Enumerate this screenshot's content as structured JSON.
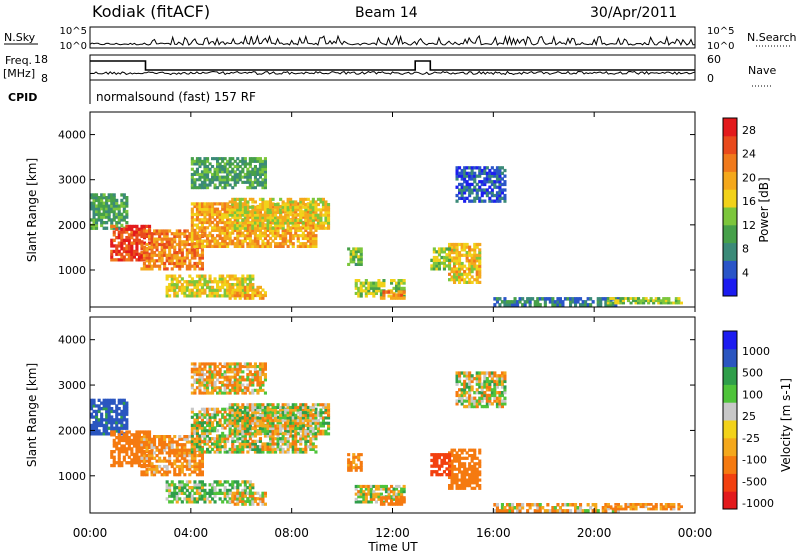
{
  "header": {
    "station": "Kodiak (fitACF)",
    "beam": "Beam 14",
    "date": "30/Apr/2011"
  },
  "colors": {
    "power_scale": [
      "#1c1cf0",
      "#2a55c8",
      "#3b8a78",
      "#46a04a",
      "#7cc63c",
      "#f2d21a",
      "#f4a81c",
      "#f07a1c",
      "#e94a1c",
      "#e31a1c"
    ],
    "velocity_scale": [
      "#e31a1c",
      "#f2400f",
      "#f57a10",
      "#f4a81c",
      "#f2d21a",
      "#c8c8c8",
      "#4fc43a",
      "#2f9e4a",
      "#2b56c0",
      "#1c1cf0"
    ],
    "ground_scatter": "#c8c8c8"
  },
  "panels": {
    "nsky": {
      "left_label": "N.Sky",
      "right_label": "N.Search",
      "ticks_left": [
        "10^5",
        "10^0"
      ],
      "ticks_right": [
        "10^5",
        "10^0"
      ]
    },
    "freq": {
      "left_label_1": "Freq.",
      "left_label_2": "[MHz]",
      "right_label": "Nave",
      "ticks_left": [
        "18",
        "8"
      ],
      "ticks_right": [
        "60",
        "0"
      ]
    },
    "cpid": {
      "label": "CPID",
      "text": "normalsound (fast) 157 RF"
    }
  },
  "chart_data": [
    {
      "type": "step",
      "name": "frequency",
      "x_hours": [
        0,
        2.2,
        2.2,
        12.9,
        12.9,
        13.5,
        13.5,
        24
      ],
      "freq_mhz": [
        15.6,
        15.6,
        12.0,
        12.0,
        15.6,
        15.6,
        12.0,
        12.0
      ],
      "ylim": [
        8,
        18
      ]
    },
    {
      "type": "heatmap",
      "title": "Power",
      "ylabel": "Slant Range [km]",
      "colorbar_label": "Power [dB]",
      "colorbar_ticks": [
        "4",
        "8",
        "12",
        "16",
        "20",
        "24",
        "28"
      ],
      "x_ticks": [
        "00:00",
        "04:00",
        "08:00",
        "12:00",
        "16:00",
        "20:00",
        "00:00"
      ],
      "y_ticks": [
        "1000",
        "2000",
        "3000",
        "4000"
      ],
      "xlim_hours": [
        0,
        24
      ],
      "ylim_km": [
        180,
        4500
      ],
      "scatter_regions": [
        {
          "t0": 0.0,
          "t1": 1.5,
          "r0": 1900,
          "r1": 2700,
          "power": 10
        },
        {
          "t0": 0.8,
          "t1": 2.4,
          "r0": 1200,
          "r1": 2000,
          "power": 26
        },
        {
          "t0": 2.0,
          "t1": 4.5,
          "r0": 1000,
          "r1": 1900,
          "power": 22
        },
        {
          "t0": 4.0,
          "t1": 9.0,
          "r0": 1500,
          "r1": 2500,
          "power": 20
        },
        {
          "t0": 5.5,
          "t1": 9.5,
          "r0": 1900,
          "r1": 2600,
          "power": 17
        },
        {
          "t0": 3.0,
          "t1": 6.5,
          "r0": 400,
          "r1": 900,
          "power": 16
        },
        {
          "t0": 5.5,
          "t1": 7.0,
          "r0": 350,
          "r1": 650,
          "power": 19
        },
        {
          "t0": 4.0,
          "t1": 7.0,
          "r0": 2800,
          "r1": 3500,
          "power": 10
        },
        {
          "t0": 10.2,
          "t1": 10.8,
          "r0": 1100,
          "r1": 1500,
          "power": 12
        },
        {
          "t0": 10.5,
          "t1": 12.5,
          "r0": 400,
          "r1": 800,
          "power": 14
        },
        {
          "t0": 11.5,
          "t1": 12.5,
          "r0": 350,
          "r1": 550,
          "power": 22
        },
        {
          "t0": 14.2,
          "t1": 15.5,
          "r0": 700,
          "r1": 1600,
          "power": 18
        },
        {
          "t0": 13.5,
          "t1": 14.3,
          "r0": 1000,
          "r1": 1500,
          "power": 14
        },
        {
          "t0": 14.5,
          "t1": 16.5,
          "r0": 2500,
          "r1": 3300,
          "power": 5
        },
        {
          "t0": 16.0,
          "t1": 21.0,
          "r0": 200,
          "r1": 400,
          "power": 7
        },
        {
          "t0": 20.5,
          "t1": 23.5,
          "r0": 250,
          "r1": 400,
          "power": 13
        }
      ]
    },
    {
      "type": "heatmap",
      "title": "Velocity",
      "ylabel": "Slant Range [km]",
      "colorbar_label": "Velocity [m s-1]",
      "colorbar_ticks": [
        "1000",
        "500",
        "100",
        "25",
        "-25",
        "-100",
        "-500",
        "-1000"
      ],
      "x_ticks": [
        "00:00",
        "04:00",
        "08:00",
        "12:00",
        "16:00",
        "20:00",
        "00:00"
      ],
      "y_ticks": [
        "1000",
        "2000",
        "3000",
        "4000"
      ],
      "xlabel": "Time UT",
      "xlim_hours": [
        0,
        24
      ],
      "ylim_km": [
        180,
        4500
      ],
      "scatter_regions": [
        {
          "t0": 0.0,
          "t1": 1.5,
          "r0": 1900,
          "r1": 2700,
          "velocity": 600
        },
        {
          "t0": 0.8,
          "t1": 2.4,
          "r0": 1200,
          "r1": 2000,
          "velocity": -300
        },
        {
          "t0": 2.0,
          "t1": 4.5,
          "r0": 1000,
          "r1": 1900,
          "velocity": -150
        },
        {
          "t0": 4.0,
          "t1": 9.0,
          "r0": 1500,
          "r1": 2500,
          "velocity": 0
        },
        {
          "t0": 5.5,
          "t1": 9.5,
          "r0": 1900,
          "r1": 2600,
          "velocity": 0
        },
        {
          "t0": 3.0,
          "t1": 6.5,
          "r0": 400,
          "r1": 900,
          "velocity": 60
        },
        {
          "t0": 5.5,
          "t1": 7.0,
          "r0": 350,
          "r1": 650,
          "velocity": -60
        },
        {
          "t0": 4.0,
          "t1": 7.0,
          "r0": 2800,
          "r1": 3500,
          "velocity": -80
        },
        {
          "t0": 10.2,
          "t1": 10.8,
          "r0": 1100,
          "r1": 1500,
          "velocity": -200
        },
        {
          "t0": 10.5,
          "t1": 12.5,
          "r0": 400,
          "r1": 800,
          "velocity": 0
        },
        {
          "t0": 11.5,
          "t1": 12.5,
          "r0": 350,
          "r1": 550,
          "velocity": -300
        },
        {
          "t0": 14.2,
          "t1": 15.5,
          "r0": 700,
          "r1": 1600,
          "velocity": -300
        },
        {
          "t0": 13.5,
          "t1": 14.3,
          "r0": 1000,
          "r1": 1500,
          "velocity": -700
        },
        {
          "t0": 14.5,
          "t1": 16.5,
          "r0": 2500,
          "r1": 3300,
          "velocity": 0
        },
        {
          "t0": 16.0,
          "t1": 21.0,
          "r0": 200,
          "r1": 400,
          "velocity": -80
        },
        {
          "t0": 20.5,
          "t1": 23.5,
          "r0": 250,
          "r1": 400,
          "velocity": -150
        }
      ]
    }
  ]
}
